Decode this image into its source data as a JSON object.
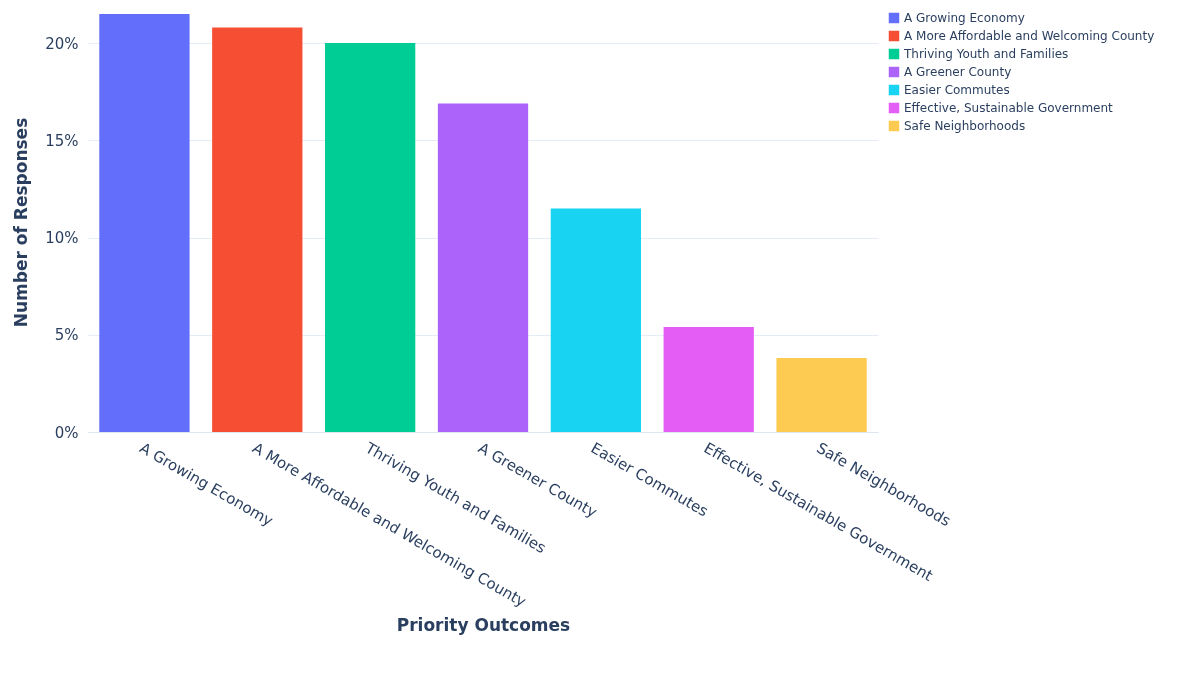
{
  "chart_data": {
    "type": "bar",
    "xlabel": "Priority Outcomes",
    "ylabel": "Number of Responses",
    "categories": [
      "A Growing Economy",
      "A More Affordable and Welcoming County",
      "Thriving Youth and Families",
      "A Greener County",
      "Easier Commutes",
      "Effective, Sustainable Government",
      "Safe Neighborhoods"
    ],
    "series": [
      {
        "name": "A Growing Economy",
        "color": "#636efa",
        "values": [
          21.5,
          null,
          null,
          null,
          null,
          null,
          null
        ]
      },
      {
        "name": "A More Affordable and Welcoming County",
        "color": "#f54e32",
        "values": [
          null,
          20.8,
          null,
          null,
          null,
          null,
          null
        ]
      },
      {
        "name": "Thriving Youth and Families",
        "color": "#00cc96",
        "values": [
          null,
          null,
          20.0,
          null,
          null,
          null,
          null
        ]
      },
      {
        "name": "A Greener County",
        "color": "#ab63fa",
        "values": [
          null,
          null,
          null,
          16.9,
          null,
          null,
          null
        ]
      },
      {
        "name": "Easier Commutes",
        "color": "#19d3f3",
        "values": [
          null,
          null,
          null,
          null,
          11.5,
          null,
          null
        ]
      },
      {
        "name": "Effective, Sustainable Government",
        "color": "#e45ef5",
        "values": [
          null,
          null,
          null,
          null,
          null,
          5.4,
          null
        ]
      },
      {
        "name": "Safe Neighborhoods",
        "color": "#fecb52",
        "values": [
          null,
          null,
          null,
          null,
          null,
          null,
          3.8
        ]
      }
    ],
    "ylim": [
      0,
      21.6
    ],
    "yticks": [
      {
        "value": 0,
        "label": "0%"
      },
      {
        "value": 5,
        "label": "5%"
      },
      {
        "value": 10,
        "label": "10%"
      },
      {
        "value": 15,
        "label": "15%"
      },
      {
        "value": 20,
        "label": "20%"
      }
    ],
    "grid": "y",
    "legend": "top right"
  }
}
